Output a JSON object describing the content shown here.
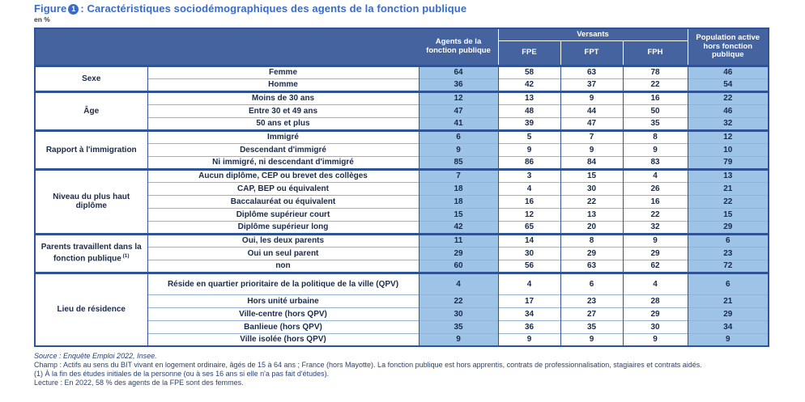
{
  "title": {
    "prefix": "Figure",
    "figure_number": "1",
    "text": ": Caractéristiques sociodémographiques des agents de la fonction publique"
  },
  "unit_label": "en %",
  "table": {
    "headers": {
      "agents": "Agents de la fonction publique",
      "versants": "Versants",
      "sub": [
        "FPE",
        "FPT",
        "FPH"
      ],
      "population": "Population active hors fonction publique"
    },
    "value_columns": [
      "Agents de la fonction publique",
      "FPE",
      "FPT",
      "FPH",
      "Population active hors fonction publique"
    ],
    "sections": [
      {
        "group": "Sexe",
        "rows": [
          {
            "label": "Femme",
            "values": [
              64,
              58,
              63,
              78,
              46
            ]
          },
          {
            "label": "Homme",
            "values": [
              36,
              42,
              37,
              22,
              54
            ]
          }
        ]
      },
      {
        "group": "Âge",
        "rows": [
          {
            "label": "Moins de 30 ans",
            "values": [
              12,
              13,
              9,
              16,
              22
            ]
          },
          {
            "label": "Entre 30 et 49 ans",
            "values": [
              47,
              48,
              44,
              50,
              46
            ]
          },
          {
            "label": "50 ans et plus",
            "values": [
              41,
              39,
              47,
              35,
              32
            ]
          }
        ]
      },
      {
        "group": "Rapport à l'immigration",
        "rows": [
          {
            "label": "Immigré",
            "values": [
              6,
              5,
              7,
              8,
              12
            ]
          },
          {
            "label": "Descendant d'immigré",
            "values": [
              9,
              9,
              9,
              9,
              10
            ]
          },
          {
            "label": "Ni immigré, ni descendant d'immigré",
            "values": [
              85,
              86,
              84,
              83,
              79
            ]
          }
        ]
      },
      {
        "group": "Niveau du plus haut diplôme",
        "rows": [
          {
            "label": "Aucun diplôme, CEP ou brevet des collèges",
            "values": [
              7,
              3,
              15,
              4,
              13
            ]
          },
          {
            "label": "CAP, BEP ou équivalent",
            "values": [
              18,
              4,
              30,
              26,
              21
            ]
          },
          {
            "label": "Baccalauréat ou équivalent",
            "values": [
              18,
              16,
              22,
              16,
              22
            ]
          },
          {
            "label": "Diplôme supérieur court",
            "values": [
              15,
              12,
              13,
              22,
              15
            ]
          },
          {
            "label": "Diplôme supérieur long",
            "values": [
              42,
              65,
              20,
              32,
              29
            ]
          }
        ]
      },
      {
        "group": "Parents travaillent dans la fonction publique",
        "group_sup": "(1)",
        "rows": [
          {
            "label": "Oui, les deux parents",
            "values": [
              11,
              14,
              8,
              9,
              6
            ]
          },
          {
            "label": "Oui un seul parent",
            "values": [
              29,
              30,
              29,
              29,
              23
            ]
          },
          {
            "label": "non",
            "values": [
              60,
              56,
              63,
              62,
              72
            ]
          }
        ]
      },
      {
        "group": "Lieu de résidence",
        "rows": [
          {
            "label": "Réside en quartier prioritaire de la politique de la ville (QPV)",
            "values": [
              4,
              4,
              6,
              4,
              6
            ],
            "tall": true
          },
          {
            "label": "Hors unité urbaine",
            "values": [
              22,
              17,
              23,
              28,
              21
            ]
          },
          {
            "label": "Ville-centre (hors QPV)",
            "values": [
              30,
              34,
              27,
              29,
              29
            ]
          },
          {
            "label": "Banlieue (hors QPV)",
            "values": [
              35,
              36,
              35,
              30,
              34
            ]
          },
          {
            "label": "Ville isolée (hors QPV)",
            "values": [
              9,
              9,
              9,
              9,
              9
            ]
          }
        ]
      }
    ]
  },
  "footer": {
    "source": "Source : Enquête Emploi 2022, Insee.",
    "champ": "Champ : Actifs au sens du BIT vivant en logement ordinaire, âgés de 15 à 64 ans ; France (hors Mayotte). La fonction publique est hors apprentis, contrats de professionnalisation, stagiaires et contrats aidés.",
    "note1": "(1) À la fin des études initiales de la personne (ou à ses 16 ans si elle n'a pas fait d'études).",
    "lecture": "Lecture : En 2022, 58 % des agents de la FPE sont des femmes."
  },
  "colors": {
    "header_bg": "#44639f",
    "highlight_cell": "#9dc3e6",
    "border_dark": "#2f5496",
    "border_light": "#95b3d7",
    "title_blue": "#3a6bc9",
    "text_dark": "#1b2b4b",
    "footer_text": "#2b4270"
  }
}
